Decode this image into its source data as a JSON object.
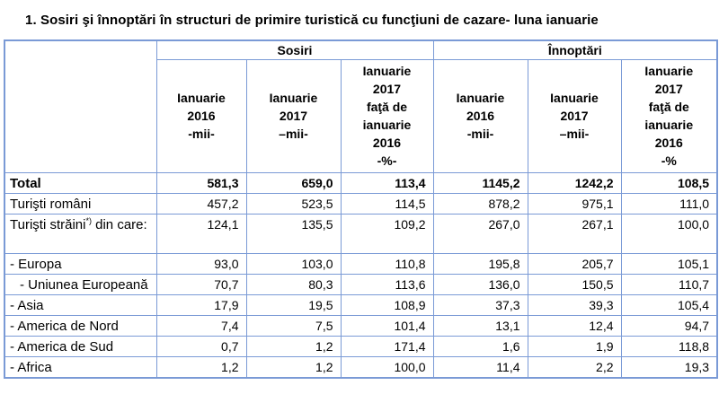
{
  "title": "1. Sosiri şi înnoptări  în structuri de primire turistică cu funcţiuni de cazare- luna ianuarie",
  "table": {
    "border_color": "#7a9ad6",
    "group_headers": {
      "sosiri": "Sosiri",
      "innoptari": "Înnoptări"
    },
    "col_headers": {
      "sosiri_2016": "Ianuarie\n2016\n-mii-",
      "sosiri_2017": "Ianuarie\n2017\n–mii-",
      "sosiri_pct": "Ianuarie\n2017\nfaţă de\nianuarie\n2016\n-%-",
      "innoptari_2016": "Ianuarie\n2016\n-mii-",
      "innoptari_2017": "Ianuarie\n2017\n–mii-",
      "innoptari_pct": "Ianuarie\n2017\nfaţă de\nianuarie\n2016\n-%"
    },
    "rows": [
      {
        "label": "Total",
        "bold": true,
        "values": [
          "581,3",
          "659,0",
          "113,4",
          "1145,2",
          "1242,2",
          "108,5"
        ]
      },
      {
        "label": "Turişti români",
        "values": [
          "457,2",
          "523,5",
          "114,5",
          "878,2",
          "975,1",
          "111,0"
        ]
      },
      {
        "label": "Turişti străini",
        "label_sup": "*)",
        "label_after": " din care:",
        "tall": true,
        "values": [
          "124,1",
          "135,5",
          "109,2",
          "267,0",
          "267,1",
          "100,0"
        ]
      },
      {
        "label": "- Europa",
        "values": [
          "93,0",
          "103,0",
          "110,8",
          "195,8",
          "205,7",
          "105,1"
        ]
      },
      {
        "label": "- Uniunea Europeană",
        "indent": true,
        "values": [
          "70,7",
          "80,3",
          "113,6",
          "136,0",
          "150,5",
          "110,7"
        ]
      },
      {
        "label": "- Asia",
        "values": [
          "17,9",
          "19,5",
          "108,9",
          "37,3",
          "39,3",
          "105,4"
        ]
      },
      {
        "label": "- America de Nord",
        "values": [
          "7,4",
          "7,5",
          "101,4",
          "13,1",
          "12,4",
          "94,7"
        ]
      },
      {
        "label": "- America de Sud",
        "values": [
          "0,7",
          "1,2",
          "171,4",
          "1,6",
          "1,9",
          "118,8"
        ]
      },
      {
        "label": "- Africa",
        "values": [
          "1,2",
          "1,2",
          "100,0",
          "11,4",
          "2,2",
          "19,3"
        ]
      }
    ]
  }
}
